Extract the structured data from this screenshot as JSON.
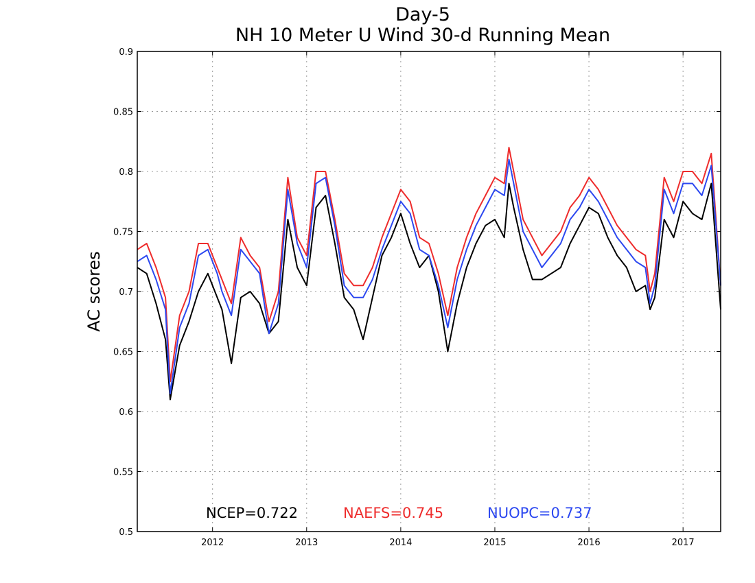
{
  "chart_data": {
    "type": "line",
    "title": "Day-5",
    "subtitle": "NH 10 Meter U Wind 30-d Running Mean",
    "ylabel": "AC scores",
    "xlabel": "",
    "xlim": [
      2011.2,
      2017.4
    ],
    "ylim": [
      0.5,
      0.9
    ],
    "yticks": [
      0.5,
      0.55,
      0.6,
      0.65,
      0.7,
      0.75,
      0.8,
      0.85,
      0.9
    ],
    "ytick_labels": [
      "0.5",
      "0.55",
      "0.6",
      "0.65",
      "0.7",
      "0.75",
      "0.8",
      "0.85",
      "0.9"
    ],
    "xticks": [
      2012,
      2013,
      2014,
      2015,
      2016,
      2017
    ],
    "xtick_labels": [
      "2012",
      "2013",
      "2014",
      "2015",
      "2016",
      "2017"
    ],
    "grid": true,
    "legend_position": "bottom-center",
    "series": [
      {
        "name": "NCEP",
        "legend_text": "NCEP=0.722",
        "color": "#000000",
        "x": [
          2011.2,
          2011.3,
          2011.4,
          2011.5,
          2011.55,
          2011.65,
          2011.75,
          2011.85,
          2011.95,
          2012.05,
          2012.1,
          2012.2,
          2012.3,
          2012.4,
          2012.5,
          2012.6,
          2012.7,
          2012.8,
          2012.9,
          2013.0,
          2013.1,
          2013.2,
          2013.3,
          2013.4,
          2013.5,
          2013.6,
          2013.7,
          2013.8,
          2013.9,
          2014.0,
          2014.1,
          2014.2,
          2014.3,
          2014.4,
          2014.5,
          2014.6,
          2014.7,
          2014.8,
          2014.9,
          2015.0,
          2015.1,
          2015.15,
          2015.2,
          2015.3,
          2015.4,
          2015.5,
          2015.6,
          2015.7,
          2015.8,
          2015.9,
          2016.0,
          2016.1,
          2016.2,
          2016.3,
          2016.4,
          2016.5,
          2016.6,
          2016.65,
          2016.7,
          2016.8,
          2016.9,
          2017.0,
          2017.1,
          2017.2,
          2017.3,
          2017.4
        ],
        "values": [
          0.72,
          0.715,
          0.69,
          0.66,
          0.61,
          0.655,
          0.675,
          0.7,
          0.715,
          0.695,
          0.685,
          0.64,
          0.695,
          0.7,
          0.69,
          0.665,
          0.675,
          0.76,
          0.72,
          0.705,
          0.77,
          0.78,
          0.74,
          0.695,
          0.685,
          0.66,
          0.695,
          0.73,
          0.745,
          0.765,
          0.74,
          0.72,
          0.73,
          0.7,
          0.65,
          0.69,
          0.72,
          0.74,
          0.755,
          0.76,
          0.745,
          0.79,
          0.77,
          0.735,
          0.71,
          0.71,
          0.715,
          0.72,
          0.74,
          0.755,
          0.77,
          0.765,
          0.745,
          0.73,
          0.72,
          0.7,
          0.705,
          0.685,
          0.695,
          0.76,
          0.745,
          0.775,
          0.765,
          0.76,
          0.79,
          0.685
        ]
      },
      {
        "name": "NAEFS",
        "legend_text": "NAEFS=0.745",
        "color": "#ee2c2c",
        "x": [
          2011.2,
          2011.3,
          2011.4,
          2011.5,
          2011.55,
          2011.65,
          2011.75,
          2011.85,
          2011.95,
          2012.05,
          2012.1,
          2012.2,
          2012.3,
          2012.4,
          2012.5,
          2012.6,
          2012.7,
          2012.8,
          2012.9,
          2013.0,
          2013.1,
          2013.2,
          2013.3,
          2013.4,
          2013.5,
          2013.6,
          2013.7,
          2013.8,
          2013.9,
          2014.0,
          2014.1,
          2014.2,
          2014.3,
          2014.4,
          2014.5,
          2014.6,
          2014.7,
          2014.8,
          2014.9,
          2015.0,
          2015.1,
          2015.15,
          2015.2,
          2015.3,
          2015.4,
          2015.5,
          2015.6,
          2015.7,
          2015.8,
          2015.9,
          2016.0,
          2016.1,
          2016.2,
          2016.3,
          2016.4,
          2016.5,
          2016.6,
          2016.65,
          2016.7,
          2016.8,
          2016.9,
          2017.0,
          2017.1,
          2017.2,
          2017.3,
          2017.4
        ],
        "values": [
          0.735,
          0.74,
          0.72,
          0.695,
          0.625,
          0.68,
          0.7,
          0.74,
          0.74,
          0.72,
          0.71,
          0.69,
          0.745,
          0.73,
          0.72,
          0.675,
          0.7,
          0.795,
          0.745,
          0.73,
          0.8,
          0.8,
          0.76,
          0.715,
          0.705,
          0.705,
          0.72,
          0.745,
          0.765,
          0.785,
          0.775,
          0.745,
          0.74,
          0.715,
          0.68,
          0.72,
          0.745,
          0.765,
          0.78,
          0.795,
          0.79,
          0.82,
          0.8,
          0.76,
          0.745,
          0.73,
          0.74,
          0.75,
          0.77,
          0.78,
          0.795,
          0.785,
          0.77,
          0.755,
          0.745,
          0.735,
          0.73,
          0.7,
          0.715,
          0.795,
          0.775,
          0.8,
          0.8,
          0.79,
          0.815,
          0.705
        ]
      },
      {
        "name": "NUOPC",
        "legend_text": "NUOPC=0.737",
        "color": "#2c48f0",
        "x": [
          2011.2,
          2011.3,
          2011.4,
          2011.5,
          2011.55,
          2011.65,
          2011.75,
          2011.85,
          2011.95,
          2012.05,
          2012.1,
          2012.2,
          2012.3,
          2012.4,
          2012.5,
          2012.6,
          2012.7,
          2012.8,
          2012.9,
          2013.0,
          2013.1,
          2013.2,
          2013.3,
          2013.4,
          2013.5,
          2013.6,
          2013.7,
          2013.8,
          2013.9,
          2014.0,
          2014.1,
          2014.2,
          2014.3,
          2014.4,
          2014.5,
          2014.6,
          2014.7,
          2014.8,
          2014.9,
          2015.0,
          2015.1,
          2015.15,
          2015.2,
          2015.3,
          2015.4,
          2015.5,
          2015.6,
          2015.7,
          2015.8,
          2015.9,
          2016.0,
          2016.1,
          2016.2,
          2016.3,
          2016.4,
          2016.5,
          2016.6,
          2016.65,
          2016.7,
          2016.8,
          2016.9,
          2017.0,
          2017.1,
          2017.2,
          2017.3,
          2017.4
        ],
        "values": [
          0.725,
          0.73,
          0.71,
          0.685,
          0.615,
          0.67,
          0.69,
          0.73,
          0.735,
          0.715,
          0.7,
          0.68,
          0.735,
          0.725,
          0.715,
          0.665,
          0.69,
          0.785,
          0.74,
          0.72,
          0.79,
          0.795,
          0.755,
          0.705,
          0.695,
          0.695,
          0.71,
          0.735,
          0.755,
          0.775,
          0.765,
          0.735,
          0.73,
          0.705,
          0.67,
          0.71,
          0.735,
          0.755,
          0.77,
          0.785,
          0.78,
          0.81,
          0.79,
          0.75,
          0.735,
          0.72,
          0.73,
          0.74,
          0.76,
          0.77,
          0.785,
          0.775,
          0.76,
          0.745,
          0.735,
          0.725,
          0.72,
          0.69,
          0.705,
          0.785,
          0.765,
          0.79,
          0.79,
          0.78,
          0.805,
          0.705
        ]
      }
    ]
  }
}
